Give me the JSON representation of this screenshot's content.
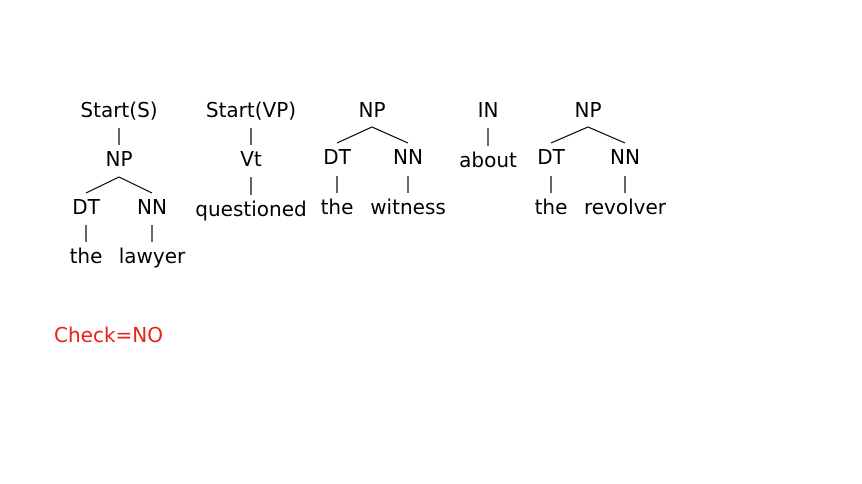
{
  "trees": [
    {
      "root": "Start(S)",
      "np": "NP",
      "dt": "DT",
      "nn": "NN",
      "dt_word": "the",
      "nn_word": "lawyer"
    },
    {
      "root": "Start(VP)",
      "vt": "Vt",
      "vt_word": "questioned"
    },
    {
      "np": "NP",
      "dt": "DT",
      "nn": "NN",
      "dt_word": "the",
      "nn_word": "witness"
    },
    {
      "in": "IN",
      "in_word": "about"
    },
    {
      "np": "NP",
      "dt": "DT",
      "nn": "NN",
      "dt_word": "the",
      "nn_word": "revolver"
    }
  ],
  "check": {
    "text": "Check=NO",
    "color": "#e8231b"
  }
}
